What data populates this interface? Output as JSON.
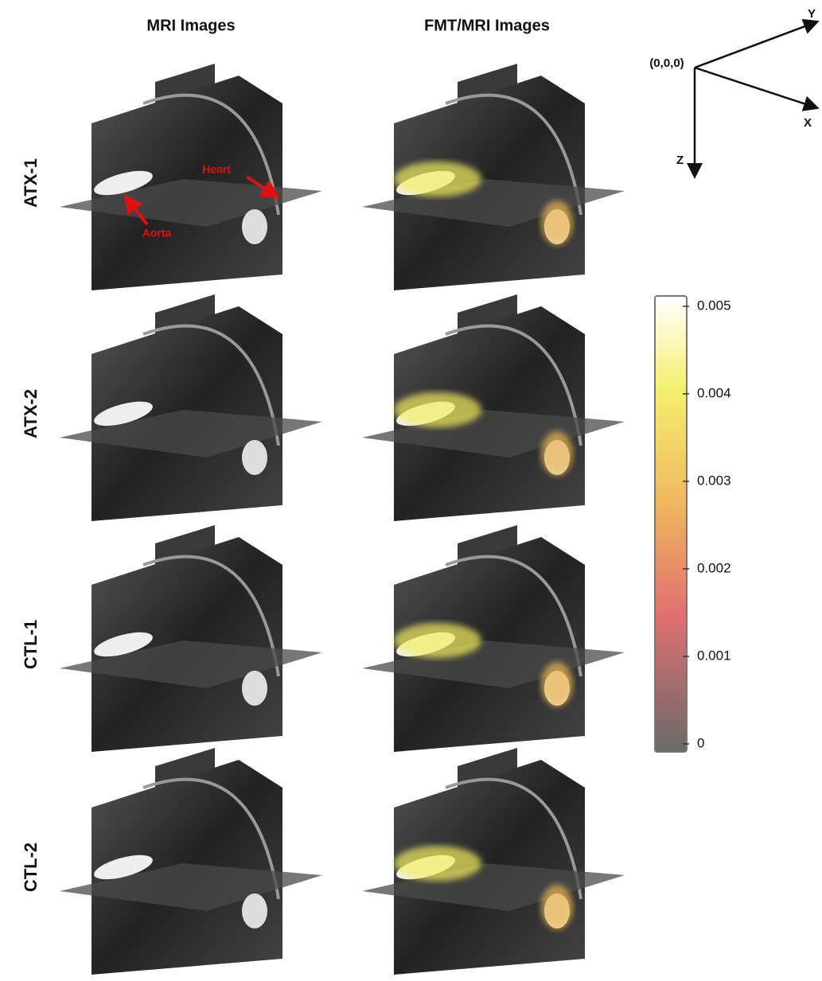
{
  "header": {
    "columns": [
      "MRI Images",
      "FMT/MRI Images"
    ]
  },
  "rows": [
    "ATX-1",
    "ATX-2",
    "CTL-1",
    "CTL-2"
  ],
  "annotations": {
    "heart": "Heart",
    "aorta": "Aorta"
  },
  "axes": {
    "origin": "(0,0,0)",
    "x": "X",
    "y": "Y",
    "z": "Z"
  },
  "colorbar": {
    "ticks": [
      0.005,
      0.004,
      0.003,
      0.002,
      0.001,
      0
    ]
  }
}
